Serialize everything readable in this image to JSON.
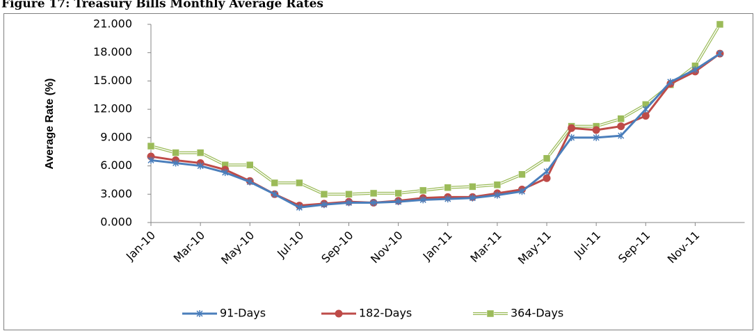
{
  "chart_data": {
    "type": "line",
    "title": "Figure 17: Treasury Bills Monthly Average Rates",
    "y_label": "Average Rate (%)",
    "categories": [
      "Jan-10",
      null,
      "Mar-10",
      null,
      "May-10",
      null,
      "Jul-10",
      null,
      "Sep-10",
      null,
      "Nov-10",
      null,
      "Jan-11",
      null,
      "Mar-11",
      null,
      "May-11",
      null,
      "Jul-11",
      null,
      "Sep-11",
      null,
      "Nov-11",
      null
    ],
    "series": [
      {
        "name": "91-Days",
        "color": "#4a7ebb",
        "marker": "star",
        "values": [
          6.6,
          6.3,
          6.0,
          5.3,
          4.3,
          3.0,
          1.6,
          1.9,
          2.1,
          2.1,
          2.2,
          2.4,
          2.5,
          2.6,
          2.9,
          3.3,
          5.4,
          9.0,
          9.0,
          9.2,
          12.0,
          14.9,
          16.2,
          17.9
        ]
      },
      {
        "name": "182-Days",
        "color": "#be4b48",
        "marker": "circle",
        "values": [
          7.0,
          6.6,
          6.3,
          5.6,
          4.4,
          3.0,
          1.8,
          2.0,
          2.2,
          2.1,
          2.3,
          2.6,
          2.7,
          2.7,
          3.1,
          3.5,
          4.7,
          10.0,
          9.8,
          10.2,
          11.3,
          14.7,
          16.0,
          17.9
        ]
      },
      {
        "name": "364-Days",
        "color": "#9bbb59",
        "marker": "square",
        "values": [
          8.1,
          7.4,
          7.4,
          6.1,
          6.1,
          4.2,
          4.2,
          3.0,
          3.0,
          3.1,
          3.1,
          3.4,
          3.7,
          3.8,
          4.0,
          5.1,
          6.8,
          10.2,
          10.2,
          11.0,
          12.5,
          14.6,
          16.6,
          21.0
        ]
      }
    ],
    "ylim": [
      0,
      21
    ],
    "yticks": [
      {
        "value": 0,
        "label": "0.000"
      },
      {
        "value": 3,
        "label": "3.000"
      },
      {
        "value": 6,
        "label": "6.000"
      },
      {
        "value": 9,
        "label": "9.000"
      },
      {
        "value": 12,
        "label": "12.000"
      },
      {
        "value": 15,
        "label": "15.000"
      },
      {
        "value": 18,
        "label": "18.000"
      },
      {
        "value": 21,
        "label": "21.000"
      }
    ],
    "grid": false,
    "legend": "bottom"
  }
}
